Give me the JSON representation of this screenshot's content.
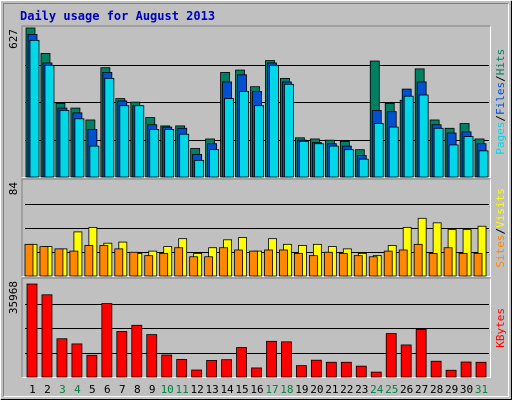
{
  "chart_data": [
    {
      "type": "bar",
      "panel": "top",
      "title": "Daily usage for August 2013",
      "y_tick_label": "627",
      "ylim": [
        0,
        627
      ],
      "categories": [
        "1",
        "2",
        "3",
        "4",
        "5",
        "6",
        "7",
        "8",
        "9",
        "10",
        "11",
        "12",
        "13",
        "14",
        "15",
        "16",
        "17",
        "18",
        "19",
        "20",
        "21",
        "22",
        "23",
        "24",
        "25",
        "26",
        "27",
        "28",
        "29",
        "30",
        "31"
      ],
      "weekend_days": [
        "3",
        "4",
        "10",
        "11",
        "17",
        "18",
        "24",
        "25",
        "31"
      ],
      "legend": [
        {
          "text": "Pages",
          "color": "#00d8e8"
        },
        {
          "text": "/",
          "color": "#000000"
        },
        {
          "text": "Files",
          "color": "#0050d0"
        },
        {
          "text": "/",
          "color": "#000000"
        },
        {
          "text": "Hits",
          "color": "#008060"
        }
      ],
      "series": [
        {
          "name": "Hits",
          "color": "#008060",
          "values": [
            627,
            520,
            310,
            290,
            240,
            460,
            330,
            315,
            250,
            215,
            215,
            120,
            160,
            440,
            450,
            380,
            490,
            415,
            165,
            160,
            155,
            150,
            115,
            488,
            310,
            323,
            455,
            240,
            205,
            225,
            160
          ]
        },
        {
          "name": "Files",
          "color": "#0050d0",
          "values": [
            600,
            480,
            290,
            270,
            200,
            440,
            320,
            300,
            220,
            210,
            205,
            95,
            140,
            400,
            430,
            360,
            480,
            400,
            155,
            145,
            140,
            130,
            90,
            280,
            275,
            370,
            400,
            220,
            185,
            190,
            140
          ]
        },
        {
          "name": "Pages",
          "color": "#00d8e8",
          "values": [
            575,
            470,
            280,
            245,
            130,
            415,
            300,
            300,
            200,
            200,
            180,
            70,
            115,
            330,
            360,
            300,
            470,
            390,
            150,
            140,
            130,
            115,
            75,
            225,
            210,
            340,
            345,
            205,
            135,
            170,
            110
          ]
        }
      ]
    },
    {
      "type": "bar",
      "panel": "middle",
      "y_tick_label": "84",
      "ylim": [
        0,
        84
      ],
      "legend": [
        {
          "text": "Sites",
          "color": "#ff8800"
        },
        {
          "text": "/",
          "color": "#000000"
        },
        {
          "text": "Visits",
          "color": "#ffff00"
        }
      ],
      "series": [
        {
          "name": "Visits",
          "color": "#ffff00",
          "values": [
            28,
            26,
            24,
            39,
            43,
            29,
            30,
            20,
            22,
            26,
            33,
            20,
            25,
            32,
            34,
            22,
            33,
            28,
            27,
            28,
            26,
            24,
            20,
            18,
            27,
            43,
            51,
            47,
            41,
            41,
            44
          ]
        },
        {
          "name": "Sites",
          "color": "#ff8800",
          "values": [
            28,
            26,
            24,
            22,
            27,
            27,
            24,
            21,
            18,
            20,
            25,
            17,
            17,
            25,
            23,
            22,
            23,
            23,
            20,
            18,
            21,
            20,
            18,
            17,
            22,
            23,
            28,
            20,
            25,
            20,
            20
          ]
        }
      ]
    },
    {
      "type": "bar",
      "panel": "bottom",
      "y_tick_label": "35968",
      "ylim": [
        0,
        35968
      ],
      "legend": [
        {
          "text": "KBytes",
          "color": "#ff0000"
        }
      ],
      "series": [
        {
          "name": "KBytes",
          "color": "#ff0000",
          "values": [
            35968,
            31800,
            14800,
            12800,
            8400,
            28400,
            17600,
            20000,
            16400,
            8500,
            6800,
            2700,
            6400,
            6700,
            11400,
            3500,
            13800,
            13600,
            4400,
            6500,
            5700,
            5700,
            4200,
            1900,
            16800,
            12400,
            18400,
            6100,
            2600,
            5800,
            5700
          ]
        }
      ]
    }
  ]
}
